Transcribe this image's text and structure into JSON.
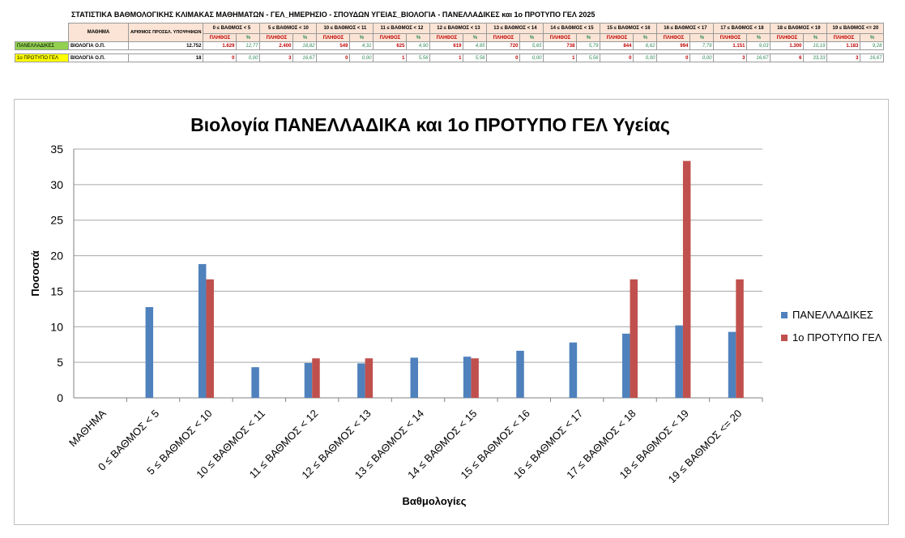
{
  "table": {
    "title": "ΣΤΑΤΙΣΤΙΚΑ ΒΑΘΜΟΛΟΓΙΚΗΣ ΚΛΙΜΑΚΑΣ ΜΑΘΗΜΑΤΩΝ - ΓΕΛ_ΗΜΕΡΗΣΙΟ - ΣΠΟΥΔΩΝ ΥΓΕΙΑΣ_ΒΙΟΛΟΓΙΑ - ΠΑΝΕΛΛΑΔΙΚΕΣ και 1ο ΠΡΟΤΥΠΟ ΓΕΛ 2025",
    "col_mathima": "ΜΑΘΗΜΑ",
    "col_count": "ΑΡΙΘΜΟΣ ΠΡΟΣΕΛ. ΥΠΟΨΗΦΙΩΝ",
    "sub_count": "ΠΛΗΘΟΣ",
    "sub_pct": "%",
    "groups": [
      "0 ≤ ΒΑΘΜΟΣ < 5",
      "5 ≤ ΒΑΘΜΟΣ < 10",
      "10 ≤ ΒΑΘΜΟΣ < 11",
      "11 ≤ ΒΑΘΜΟΣ < 12",
      "12 ≤ ΒΑΘΜΟΣ < 13",
      "13 ≤ ΒΑΘΜΟΣ < 14",
      "14 ≤ ΒΑΘΜΟΣ < 15",
      "15 ≤ ΒΑΘΜΟΣ < 16",
      "16 ≤ ΒΑΘΜΟΣ < 17",
      "17 ≤ ΒΑΘΜΟΣ < 18",
      "18 ≤ ΒΑΘΜΟΣ < 19",
      "19 ≤ ΒΑΘΜΟΣ <= 20"
    ],
    "rows": [
      {
        "label": "ΠΑΝΕΛΛΑΔΙΚΕΣ",
        "lesson": "ΒΙΟΛΟΓΙΑ Ο.Π.",
        "total": "12.752",
        "counts": [
          "1.629",
          "2.400",
          "549",
          "625",
          "619",
          "720",
          "738",
          "844",
          "994",
          "1.151",
          "1.300",
          "1.183"
        ],
        "pcts": [
          "12,77",
          "18,82",
          "4,31",
          "4,90",
          "4,85",
          "5,65",
          "5,79",
          "6,62",
          "7,79",
          "9,03",
          "10,19",
          "9,28"
        ]
      },
      {
        "label": "1ο ΠΡΟΤΥΠΟ ΓΕΛ",
        "lesson": "ΒΙΟΛΟΓΙΑ Ο.Π.",
        "total": "18",
        "counts": [
          "0",
          "3",
          "0",
          "1",
          "1",
          "0",
          "1",
          "0",
          "0",
          "3",
          "6",
          "3"
        ],
        "pcts": [
          "0,00",
          "16,67",
          "0,00",
          "5,56",
          "5,56",
          "0,00",
          "5,56",
          "0,00",
          "0,00",
          "16,67",
          "33,33",
          "16,67"
        ]
      }
    ]
  },
  "chart_data": {
    "type": "bar",
    "title": "Βιολογία ΠΑΝΕΛΛΑΔΙΚΑ και 1ο ΠΡΟΤΥΠΟ ΓΕΛ Υγείας",
    "xlabel": "Βαθμολογίες",
    "ylabel": "Ποσοστά",
    "ylim": [
      0,
      35
    ],
    "yticks": [
      0,
      5,
      10,
      15,
      20,
      25,
      30,
      35
    ],
    "grid": true,
    "legend_position": "right",
    "categories": [
      "ΜΑΘΗΜΑ",
      "0 ≤ ΒΑΘΜΟΣ < 5",
      "5 ≤ ΒΑΘΜΟΣ < 10",
      "10 ≤ ΒΑΘΜΟΣ < 11",
      "11 ≤ ΒΑΘΜΟΣ < 12",
      "12 ≤ ΒΑΘΜΟΣ < 13",
      "13 ≤ ΒΑΘΜΟΣ < 14",
      "14 ≤ ΒΑΘΜΟΣ < 15",
      "15 ≤ ΒΑΘΜΟΣ < 16",
      "16 ≤ ΒΑΘΜΟΣ < 17",
      "17 ≤ ΒΑΘΜΟΣ < 18",
      "18 ≤ ΒΑΘΜΟΣ < 19",
      "19 ≤ ΒΑΘΜΟΣ <= 20"
    ],
    "series": [
      {
        "name": "ΠΑΝΕΛΛΑΔΙΚΕΣ",
        "color": "#4f81bd",
        "values": [
          0,
          12.77,
          18.82,
          4.31,
          4.9,
          4.85,
          5.65,
          5.79,
          6.62,
          7.79,
          9.03,
          10.19,
          9.28
        ]
      },
      {
        "name": "1ο ΠΡΟΤΥΠΟ ΓΕΛ",
        "color": "#c0504d",
        "values": [
          0,
          0,
          16.67,
          0,
          5.56,
          5.56,
          0,
          5.56,
          0,
          0,
          16.67,
          33.33,
          16.67
        ]
      }
    ]
  }
}
